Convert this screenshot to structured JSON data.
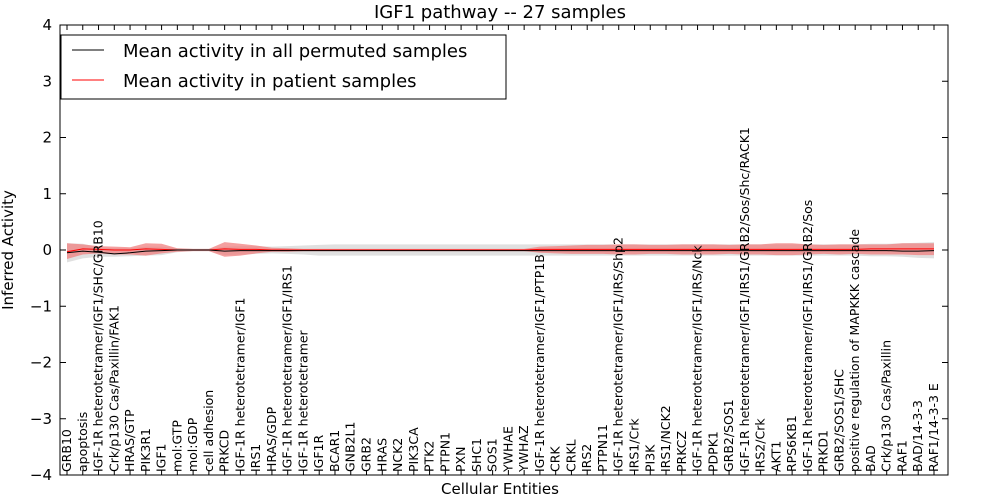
{
  "chart_data": {
    "type": "line",
    "title": "IGF1 pathway -- 27 samples",
    "xlabel": "Cellular Entities",
    "ylabel": "Inferred Activity",
    "ylim": [
      -4,
      4
    ],
    "yticks": [
      4,
      3,
      2,
      1,
      0,
      -1,
      -2,
      -3,
      -4
    ],
    "ytick_labels": [
      "4",
      "3",
      "2",
      "1",
      "0",
      "−1",
      "−2",
      "−3",
      "−4"
    ],
    "legend_position": "top-left",
    "colors": {
      "permuted_line": "#000000",
      "patient_line": "#ff0000",
      "permuted_band": "#cccccc",
      "patient_band": "#f08080"
    },
    "categories": [
      "GRB10",
      "apoptosis",
      "IGF-1R heterotetramer/IGF1/SHC/GRB10",
      "Crk/p130 Cas/Paxillin/FAK1",
      "HRAS/GTP",
      "PIK3R1",
      "IGF1",
      "mol:GTP",
      "mol:GDP",
      "cell adhesion",
      "PRKCD",
      "IGF-1R heterotetramer/IGF1",
      "IRS1",
      "HRAS/GDP",
      "IGF-1R heterotetramer/IGF1/IRS1",
      "IGF-1R heterotetramer",
      "IGF1R",
      "BCAR1",
      "GNB2L1",
      "GRB2",
      "HRAS",
      "NCK2",
      "PIK3CA",
      "PTK2",
      "PTPN1",
      "PXN",
      "SHC1",
      "SOS1",
      "YWHAE",
      "YWHAZ",
      "IGF-1R heterotetramer/IGF1/PTP1B",
      "CRK",
      "CRKL",
      "IRS2",
      "PTPN11",
      "IGF-1R heterotetramer/IGF1/IRS/Shp2",
      "IRS1/Crk",
      "PI3K",
      "IRS1/NCK2",
      "PRKCZ",
      "IGF-1R heterotetramer/IGF1/IRS/Nck",
      "PDPK1",
      "GRB2/SOS1",
      "IGF-1R heterotetramer/IGF1/IRS1/GRB2/Sos/Shc/RACK1",
      "IRS2/Crk",
      "AKT1",
      "RPS6KB1",
      "IGF-1R heterotetramer/IGF1/IRS1/GRB2/Sos",
      "PRKD1",
      "GRB2/SOS1/SHC",
      "positive regulation of MAPKKK cascade",
      "BAD",
      "Crk/p130 Cas/Paxillin",
      "RAF1",
      "BAD/14-3-3",
      "RAF1/14-3-3 E"
    ],
    "series": [
      {
        "name": "Mean activity in all permuted samples",
        "color": "#000000",
        "values": [
          -0.05,
          -0.02,
          -0.04,
          -0.07,
          -0.05,
          -0.02,
          -0.01,
          0,
          0,
          0,
          -0.02,
          -0.01,
          -0.01,
          -0.01,
          -0.01,
          -0.01,
          -0.01,
          -0.01,
          -0.01,
          -0.01,
          -0.01,
          -0.01,
          -0.01,
          -0.01,
          -0.01,
          -0.01,
          -0.01,
          -0.01,
          -0.01,
          -0.01,
          -0.01,
          -0.01,
          -0.01,
          -0.01,
          -0.01,
          -0.01,
          -0.01,
          -0.01,
          -0.01,
          -0.01,
          -0.01,
          -0.01,
          -0.01,
          -0.01,
          -0.01,
          -0.01,
          -0.01,
          -0.01,
          -0.01,
          -0.01,
          -0.01,
          -0.01,
          -0.01,
          -0.02,
          -0.02,
          -0.01
        ],
        "band_low": [
          -0.22,
          -0.15,
          -0.12,
          -0.12,
          -0.11,
          -0.1,
          -0.09,
          -0.04,
          -0.02,
          -0.02,
          -0.09,
          -0.08,
          -0.07,
          -0.06,
          -0.07,
          -0.08,
          -0.1,
          -0.1,
          -0.1,
          -0.1,
          -0.1,
          -0.1,
          -0.1,
          -0.1,
          -0.1,
          -0.1,
          -0.1,
          -0.1,
          -0.1,
          -0.1,
          -0.1,
          -0.1,
          -0.1,
          -0.1,
          -0.1,
          -0.1,
          -0.1,
          -0.1,
          -0.1,
          -0.1,
          -0.1,
          -0.1,
          -0.1,
          -0.1,
          -0.1,
          -0.1,
          -0.1,
          -0.1,
          -0.1,
          -0.1,
          -0.1,
          -0.11,
          -0.11,
          -0.12,
          -0.14,
          -0.15
        ],
        "band_high": [
          0.12,
          0.11,
          0.05,
          0.03,
          0.03,
          0.06,
          0.06,
          0.03,
          0.02,
          0.02,
          0.06,
          0.07,
          0.07,
          0.06,
          0.07,
          0.08,
          0.09,
          0.1,
          0.1,
          0.1,
          0.1,
          0.1,
          0.1,
          0.1,
          0.1,
          0.1,
          0.1,
          0.1,
          0.1,
          0.1,
          0.1,
          0.1,
          0.1,
          0.1,
          0.1,
          0.1,
          0.1,
          0.1,
          0.1,
          0.1,
          0.1,
          0.1,
          0.1,
          0.1,
          0.1,
          0.1,
          0.1,
          0.1,
          0.1,
          0.1,
          0.1,
          0.11,
          0.11,
          0.12,
          0.13,
          0.14
        ]
      },
      {
        "name": "Mean activity in patient samples",
        "color": "#ff0000",
        "values": [
          -0.03,
          0.02,
          0.01,
          0,
          0,
          0.02,
          0.01,
          0,
          0,
          0,
          0.02,
          0.01,
          0.01,
          0,
          0,
          0,
          0,
          0,
          0,
          0,
          0,
          0,
          0,
          0,
          0,
          0,
          0,
          0,
          0,
          0,
          0.01,
          0.01,
          0.01,
          0.01,
          0.01,
          0.01,
          0.01,
          0.01,
          0.01,
          0.01,
          0.01,
          0.01,
          0.01,
          0.01,
          0.01,
          0.01,
          0.01,
          0.01,
          0.01,
          0.01,
          0.01,
          0.02,
          0.02,
          0.02,
          0.02,
          0.02
        ],
        "band_low": [
          -0.16,
          -0.08,
          -0.06,
          -0.08,
          -0.08,
          -0.1,
          -0.06,
          -0.03,
          -0.02,
          -0.02,
          -0.12,
          -0.1,
          -0.06,
          -0.03,
          -0.03,
          -0.02,
          -0.02,
          -0.02,
          -0.02,
          -0.02,
          -0.02,
          -0.02,
          -0.02,
          -0.02,
          -0.02,
          -0.02,
          -0.02,
          -0.02,
          -0.02,
          -0.02,
          -0.05,
          -0.06,
          -0.07,
          -0.07,
          -0.07,
          -0.08,
          -0.08,
          -0.07,
          -0.07,
          -0.08,
          -0.08,
          -0.08,
          -0.07,
          -0.08,
          -0.08,
          -0.09,
          -0.09,
          -0.08,
          -0.07,
          -0.08,
          -0.07,
          -0.08,
          -0.08,
          -0.08,
          -0.09,
          -0.09
        ],
        "band_high": [
          0.12,
          0.1,
          0.07,
          0.06,
          0.05,
          0.12,
          0.11,
          0.03,
          0.02,
          0.02,
          0.14,
          0.11,
          0.08,
          0.04,
          0.03,
          0.02,
          0.02,
          0.02,
          0.02,
          0.02,
          0.02,
          0.02,
          0.02,
          0.02,
          0.02,
          0.02,
          0.02,
          0.02,
          0.02,
          0.02,
          0.06,
          0.07,
          0.08,
          0.09,
          0.09,
          0.1,
          0.1,
          0.09,
          0.09,
          0.1,
          0.1,
          0.1,
          0.09,
          0.1,
          0.1,
          0.12,
          0.12,
          0.1,
          0.09,
          0.1,
          0.1,
          0.1,
          0.1,
          0.12,
          0.12,
          0.12
        ]
      }
    ]
  }
}
